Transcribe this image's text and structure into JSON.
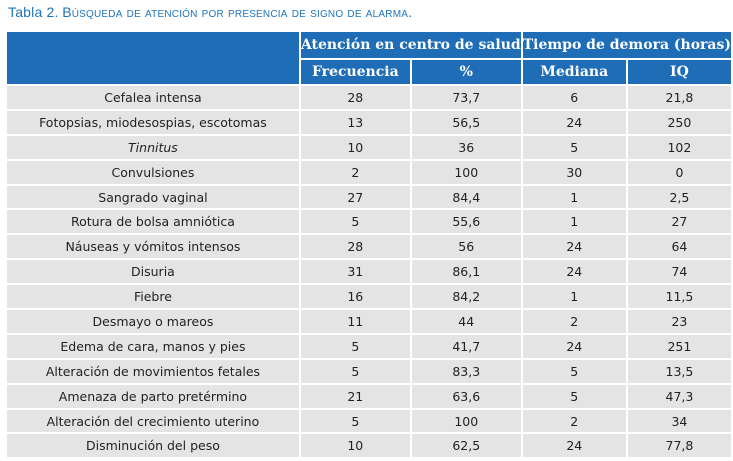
{
  "caption": {
    "label": "Tabla 2.",
    "title": "Búsqueda de atención por presencia de signo de alarma."
  },
  "header": {
    "group1": "Atención en centro de salud",
    "group2": "Tiempo de demora (horas)",
    "columns": [
      "Frecuencia",
      "%",
      "Mediana",
      "IQ"
    ]
  },
  "rows": [
    {
      "sign": "Cefalea intensa",
      "freq": "28",
      "pct": "73,7",
      "median": "6",
      "iq": "21,8"
    },
    {
      "sign": "Fotopsias, miodesospias, escotomas",
      "freq": "13",
      "pct": "56,5",
      "median": "24",
      "iq": "250"
    },
    {
      "sign": "Tinnitus",
      "freq": "10",
      "pct": "36",
      "median": "5",
      "iq": "102"
    },
    {
      "sign": "Convulsiones",
      "freq": "2",
      "pct": "100",
      "median": "30",
      "iq": "0"
    },
    {
      "sign": "Sangrado vaginal",
      "freq": "27",
      "pct": "84,4",
      "median": "1",
      "iq": "2,5"
    },
    {
      "sign": "Rotura de bolsa amniótica",
      "freq": "5",
      "pct": "55,6",
      "median": "1",
      "iq": "27"
    },
    {
      "sign": "Náuseas y vómitos intensos",
      "freq": "28",
      "pct": "56",
      "median": "24",
      "iq": "64"
    },
    {
      "sign": "Disuria",
      "freq": "31",
      "pct": "86,1",
      "median": "24",
      "iq": "74"
    },
    {
      "sign": "Fiebre",
      "freq": "16",
      "pct": "84,2",
      "median": "1",
      "iq": "11,5"
    },
    {
      "sign": "Desmayo o mareos",
      "freq": "11",
      "pct": "44",
      "median": "2",
      "iq": "23"
    },
    {
      "sign": "Edema de cara, manos y pies",
      "freq": "5",
      "pct": "41,7",
      "median": "24",
      "iq": "251"
    },
    {
      "sign": "Alteración de movimientos fetales",
      "freq": "5",
      "pct": "83,3",
      "median": "5",
      "iq": "13,5"
    },
    {
      "sign": "Amenaza de parto pretérmino",
      "freq": "21",
      "pct": "63,6",
      "median": "5",
      "iq": "47,3"
    },
    {
      "sign": "Alteración del crecimiento uterino",
      "freq": "5",
      "pct": "100",
      "median": "2",
      "iq": "34"
    },
    {
      "sign": "Disminución del peso",
      "freq": "10",
      "pct": "62,5",
      "median": "24",
      "iq": "77,8"
    }
  ]
}
